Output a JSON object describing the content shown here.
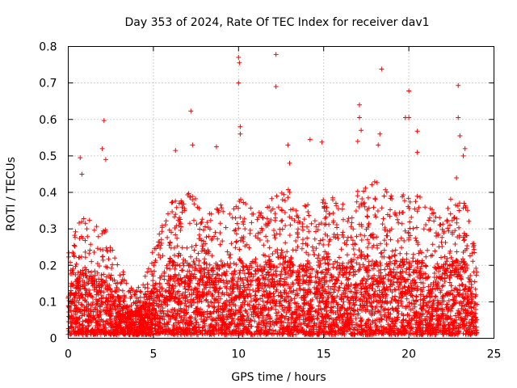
{
  "chart_data": {
    "type": "scatter",
    "title": "Day 353 of 2024, Rate Of TEC Index for receiver dav1",
    "xlabel": "GPS time / hours",
    "ylabel": "ROTI / TECUs",
    "xlim": [
      0,
      25
    ],
    "ylim": [
      0,
      0.8
    ],
    "x_ticks": [
      0,
      5,
      10,
      15,
      20,
      25
    ],
    "x_tick_labels": [
      "0",
      "5",
      "10",
      "15",
      "20",
      "25"
    ],
    "y_ticks": [
      0,
      0.1,
      0.2,
      0.3,
      0.4,
      0.5,
      0.6,
      0.7,
      0.8
    ],
    "y_tick_labels": [
      "0",
      "0.1",
      "0.2",
      "0.3",
      "0.4",
      "0.5",
      "0.6",
      "0.7",
      "0.8"
    ],
    "grid": true,
    "marker": "plus",
    "color": "#ff0000",
    "x_data_range": [
      0,
      24
    ],
    "envelope": {
      "hours": [
        0,
        0.5,
        1,
        1.5,
        2,
        2.5,
        3,
        3.5,
        4,
        4.5,
        5,
        5.5,
        6,
        6.5,
        7,
        7.5,
        8,
        8.5,
        9,
        9.5,
        10,
        10.5,
        11,
        11.5,
        12,
        12.5,
        13,
        13.5,
        14,
        14.5,
        15,
        15.5,
        16,
        16.5,
        17,
        17.5,
        18,
        18.5,
        19,
        19.5,
        20,
        20.5,
        21,
        21.5,
        22,
        22.5,
        23,
        23.5,
        24
      ],
      "typical_max": [
        0.22,
        0.3,
        0.34,
        0.3,
        0.32,
        0.24,
        0.2,
        0.14,
        0.12,
        0.16,
        0.24,
        0.3,
        0.38,
        0.36,
        0.4,
        0.38,
        0.36,
        0.34,
        0.36,
        0.34,
        0.38,
        0.36,
        0.36,
        0.34,
        0.38,
        0.4,
        0.4,
        0.34,
        0.36,
        0.34,
        0.4,
        0.38,
        0.36,
        0.36,
        0.44,
        0.4,
        0.42,
        0.42,
        0.38,
        0.38,
        0.4,
        0.4,
        0.36,
        0.34,
        0.34,
        0.38,
        0.4,
        0.34,
        0.2
      ]
    },
    "outliers": [
      {
        "x": 0.7,
        "y": 0.495
      },
      {
        "x": 0.8,
        "y": 0.45
      },
      {
        "x": 2.0,
        "y": 0.52
      },
      {
        "x": 2.1,
        "y": 0.597
      },
      {
        "x": 2.2,
        "y": 0.49
      },
      {
        "x": 6.3,
        "y": 0.515
      },
      {
        "x": 7.2,
        "y": 0.623
      },
      {
        "x": 7.3,
        "y": 0.53
      },
      {
        "x": 8.7,
        "y": 0.525
      },
      {
        "x": 10.0,
        "y": 0.77
      },
      {
        "x": 10.05,
        "y": 0.755
      },
      {
        "x": 10.0,
        "y": 0.7
      },
      {
        "x": 10.1,
        "y": 0.58
      },
      {
        "x": 10.1,
        "y": 0.56
      },
      {
        "x": 12.2,
        "y": 0.778
      },
      {
        "x": 12.2,
        "y": 0.69
      },
      {
        "x": 12.9,
        "y": 0.53
      },
      {
        "x": 13.0,
        "y": 0.48
      },
      {
        "x": 14.2,
        "y": 0.545
      },
      {
        "x": 14.9,
        "y": 0.538
      },
      {
        "x": 17.1,
        "y": 0.64
      },
      {
        "x": 17.1,
        "y": 0.605
      },
      {
        "x": 17.2,
        "y": 0.57
      },
      {
        "x": 17.0,
        "y": 0.54
      },
      {
        "x": 18.4,
        "y": 0.738
      },
      {
        "x": 18.3,
        "y": 0.56
      },
      {
        "x": 18.2,
        "y": 0.53
      },
      {
        "x": 19.8,
        "y": 0.605
      },
      {
        "x": 20.0,
        "y": 0.678
      },
      {
        "x": 20.0,
        "y": 0.605
      },
      {
        "x": 20.5,
        "y": 0.568
      },
      {
        "x": 20.5,
        "y": 0.51
      },
      {
        "x": 22.9,
        "y": 0.693
      },
      {
        "x": 22.9,
        "y": 0.605
      },
      {
        "x": 23.0,
        "y": 0.555
      },
      {
        "x": 23.3,
        "y": 0.52
      },
      {
        "x": 23.2,
        "y": 0.5
      },
      {
        "x": 22.8,
        "y": 0.44
      }
    ]
  }
}
